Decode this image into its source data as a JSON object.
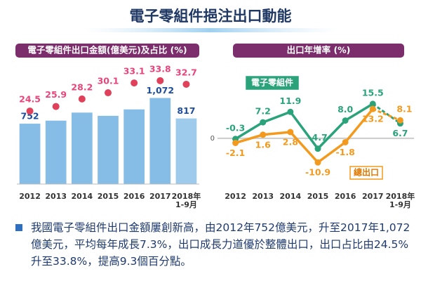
{
  "title": "電子零組件挹注出口動能",
  "note": "我國電子零組件出口金額屢創新高，由2012年752億美元，升至2017年1,072億美元，平均每年成長7.3%，出口成長力道優於整體出口，出口占比由24.5%升至33.8%，提高9.3個百分點。",
  "chart_data": [
    {
      "type": "bar",
      "title": "電子零組件出口金額(億美元)及占比 (%)",
      "categories": [
        "2012",
        "2013",
        "2014",
        "2015",
        "2016",
        "2017",
        "2018年 1-9月"
      ],
      "ylim": [
        0,
        1400
      ],
      "y2lim": [
        0,
        40
      ],
      "series": [
        {
          "name": "出口金額",
          "color": "#86bde6",
          "values": [
            752,
            790,
            890,
            850,
            930,
            1072,
            817
          ],
          "value_labels": [
            "752",
            null,
            null,
            null,
            null,
            "1,072",
            "817"
          ]
        },
        {
          "name": "占比",
          "color": "#e8457a",
          "axis": "y2",
          "values": [
            24.5,
            25.9,
            28.2,
            30.1,
            33.1,
            33.8,
            32.7
          ]
        }
      ]
    },
    {
      "type": "line",
      "title": "出口年增率 (%)",
      "categories": [
        "2012",
        "2013",
        "2014",
        "2015",
        "2016",
        "2017",
        "2018年 1-9月"
      ],
      "ylim": [
        -14,
        18
      ],
      "yticks": [
        0
      ],
      "series": [
        {
          "name": "電子零組件",
          "color": "#2aa37a",
          "values": [
            -0.3,
            7.2,
            11.9,
            -4.7,
            8.0,
            15.5,
            6.7
          ],
          "value_labels": [
            "-0.3",
            "7.2",
            "11.9",
            "-4.7",
            "8.0",
            "15.5",
            "6.7"
          ]
        },
        {
          "name": "總出口",
          "color": "#f39a1e",
          "values": [
            -2.1,
            1.6,
            2.8,
            -10.9,
            -1.8,
            13.2,
            8.1
          ],
          "value_labels": [
            "-2.1",
            "1.6",
            "2.8",
            "-10.9",
            "-1.8",
            "13.2",
            "8.1"
          ]
        }
      ]
    }
  ]
}
